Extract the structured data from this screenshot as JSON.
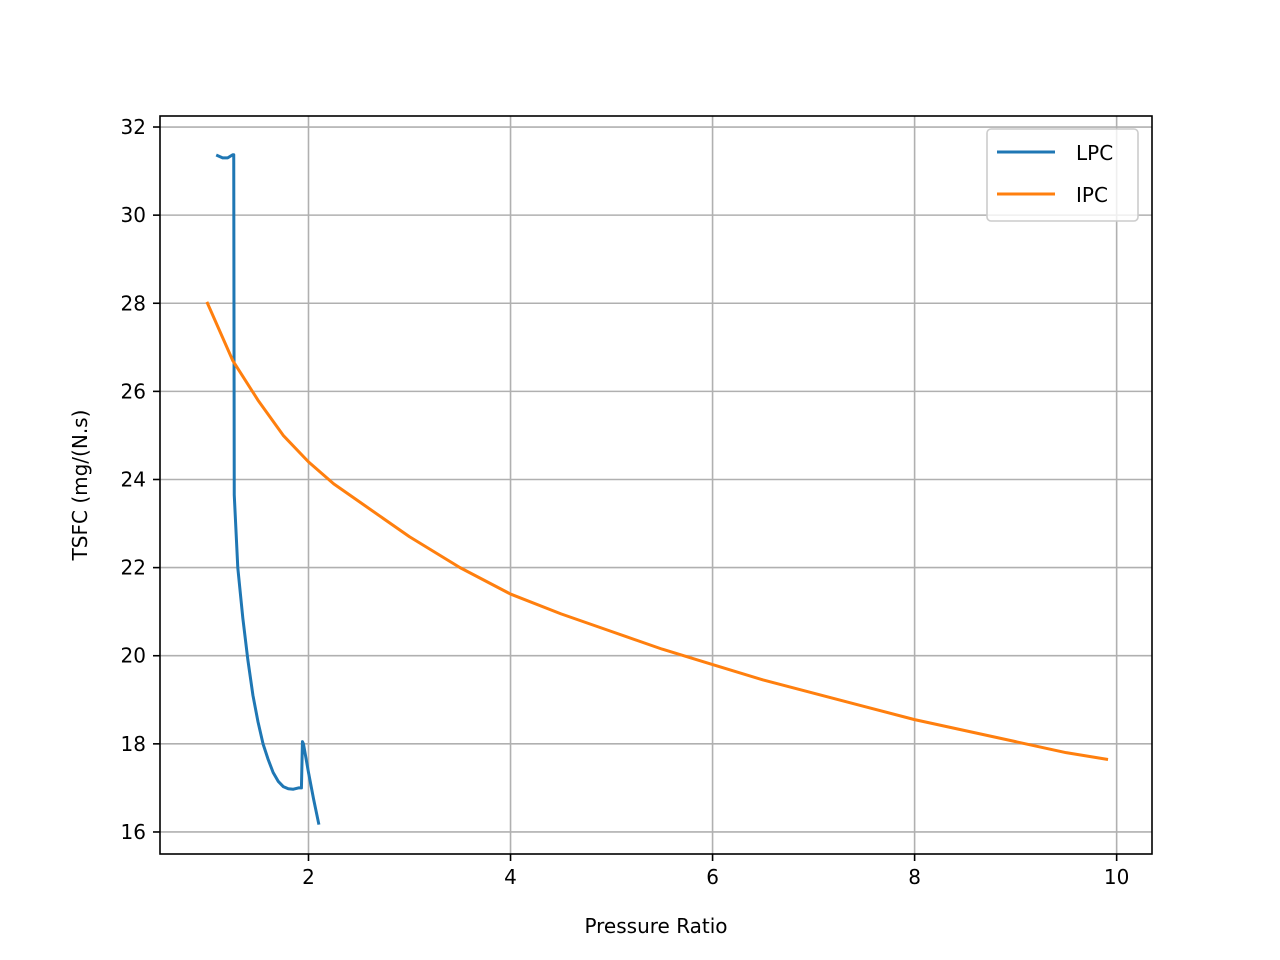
{
  "chart_data": {
    "type": "line",
    "title": "",
    "xlabel": "Pressure Ratio",
    "ylabel": "TSFC (mg/(N.s)",
    "xlim": [
      0.53,
      10.35
    ],
    "ylim": [
      15.5,
      32.25
    ],
    "xticks": [
      2,
      4,
      6,
      8,
      10
    ],
    "yticks": [
      16,
      18,
      20,
      22,
      24,
      26,
      28,
      30,
      32
    ],
    "grid": true,
    "legend_position": "upper right",
    "series": [
      {
        "name": "LPC",
        "color": "#1f77b4",
        "x": [
          1.1,
          1.15,
          1.2,
          1.25,
          1.26,
          1.265,
          1.3,
          1.35,
          1.4,
          1.45,
          1.5,
          1.55,
          1.6,
          1.65,
          1.7,
          1.75,
          1.8,
          1.85,
          1.9,
          1.93,
          1.94,
          1.95,
          2.0,
          2.05,
          2.1
        ],
        "y": [
          31.35,
          31.3,
          31.3,
          31.37,
          31.37,
          23.65,
          22.0,
          20.85,
          19.9,
          19.1,
          18.5,
          18.0,
          17.65,
          17.35,
          17.15,
          17.03,
          16.98,
          16.97,
          17.0,
          17.0,
          18.05,
          18.0,
          17.35,
          16.75,
          16.2
        ]
      },
      {
        "name": "IPC",
        "color": "#ff7f0e",
        "x": [
          1.0,
          1.25,
          1.5,
          1.75,
          2.0,
          2.25,
          2.5,
          3.0,
          3.5,
          4.0,
          4.5,
          5.0,
          5.5,
          6.0,
          6.5,
          7.0,
          7.5,
          8.0,
          8.5,
          9.0,
          9.5,
          9.9
        ],
        "y": [
          28.0,
          26.7,
          25.8,
          25.0,
          24.4,
          23.9,
          23.5,
          22.7,
          22.0,
          21.4,
          20.95,
          20.55,
          20.15,
          19.8,
          19.45,
          19.15,
          18.85,
          18.55,
          18.3,
          18.05,
          17.8,
          17.65
        ]
      }
    ]
  }
}
